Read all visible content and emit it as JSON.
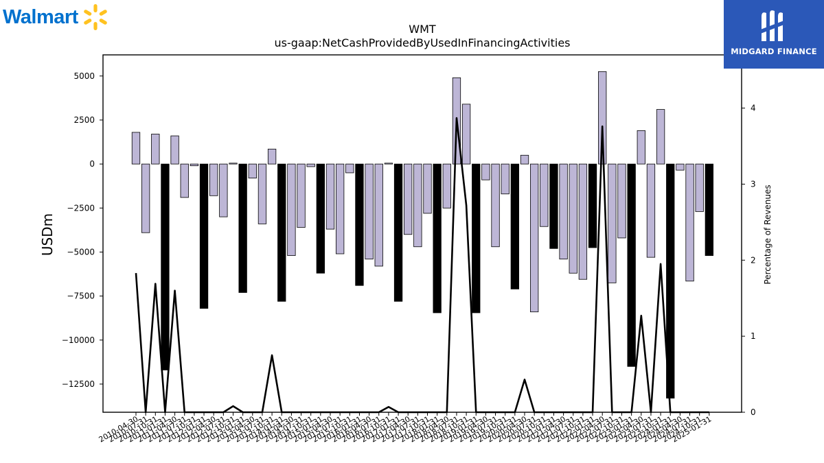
{
  "brand_left": {
    "name": "Walmart",
    "icon": "walmart-spark-icon",
    "color": "#0071CE",
    "spark_color": "#FFC220"
  },
  "brand_right": {
    "name": "MIDGARD FINANCE",
    "icon": "midgard-mark-icon",
    "background": "#2B58B8"
  },
  "chart_data": {
    "type": "bar",
    "title": "WMT",
    "subtitle": "us-gaap:NetCashProvidedByUsedInFinancingActivities",
    "ylabel": "USDm",
    "y2label": "Percentage of Revenues",
    "ylim": [
      -14100,
      6200
    ],
    "y2lim": [
      0,
      4.7
    ],
    "yticks": [
      5000,
      2500,
      0,
      -2500,
      -5000,
      -7500,
      -10000,
      -12500
    ],
    "y2ticks": [
      0,
      1,
      2,
      3,
      4
    ],
    "bar_colors": {
      "quarterly": "#BDB6D6",
      "annual": "#000000"
    },
    "line_color": "#000000",
    "categories": [
      "2010-04-30",
      "2010-07-31",
      "2010-10-31",
      "2011-01-31",
      "2011-04-30",
      "2011-07-31",
      "2011-10-31",
      "2012-01-31",
      "2012-04-30",
      "2012-07-31",
      "2012-10-31",
      "2013-01-31",
      "2013-04-30",
      "2013-07-31",
      "2013-10-31",
      "2014-01-31",
      "2014-04-30",
      "2014-07-31",
      "2014-10-31",
      "2015-01-31",
      "2015-04-30",
      "2015-07-31",
      "2015-10-31",
      "2016-01-31",
      "2016-04-30",
      "2016-07-31",
      "2016-10-31",
      "2017-01-31",
      "2017-04-30",
      "2017-07-31",
      "2017-10-31",
      "2018-01-31",
      "2018-04-30",
      "2018-07-31",
      "2018-10-31",
      "2019-01-31",
      "2019-04-30",
      "2019-07-31",
      "2019-10-31",
      "2020-01-31",
      "2020-04-30",
      "2020-07-31",
      "2020-10-31",
      "2021-01-31",
      "2021-04-30",
      "2021-07-31",
      "2021-10-31",
      "2022-01-31",
      "2022-04-30",
      "2022-07-31",
      "2022-10-31",
      "2023-01-31",
      "2023-04-30",
      "2023-07-31",
      "2023-10-31",
      "2024-01-31",
      "2024-04-30",
      "2024-07-31",
      "2024-10-31",
      "2025-01-31"
    ],
    "values": [
      1800,
      -3900,
      1700,
      -11700,
      1600,
      -1900,
      -100,
      -8200,
      -1800,
      -3000,
      50,
      -7300,
      -800,
      -3400,
      850,
      -7800,
      -5200,
      -3600,
      -150,
      -6200,
      -3700,
      -5100,
      -500,
      -6900,
      -5400,
      -5800,
      50,
      -7800,
      -4000,
      -4700,
      -2800,
      -8450,
      -2500,
      4900,
      3400,
      -8450,
      -900,
      -4700,
      -1700,
      -7100,
      500,
      -8400,
      -3550,
      -4800,
      -5400,
      -6200,
      -6550,
      -4750,
      5250,
      -6750,
      -4200,
      -11500,
      1900,
      -5300,
      3100,
      -13300,
      -350,
      -6650,
      -2700,
      -5200
    ],
    "annual": [
      false,
      false,
      false,
      true,
      false,
      false,
      false,
      true,
      false,
      false,
      false,
      true,
      false,
      false,
      false,
      true,
      false,
      false,
      false,
      true,
      false,
      false,
      false,
      true,
      false,
      false,
      false,
      true,
      false,
      false,
      false,
      true,
      false,
      false,
      false,
      true,
      false,
      false,
      false,
      true,
      false,
      false,
      false,
      true,
      false,
      false,
      false,
      true,
      false,
      false,
      false,
      true,
      false,
      false,
      false,
      true,
      false,
      false,
      false,
      true
    ],
    "pct_of_revenues": [
      1.83,
      0,
      1.69,
      0,
      1.6,
      0,
      0,
      0,
      0,
      0,
      0.08,
      0,
      0,
      0,
      0.75,
      0,
      0,
      0,
      0,
      0,
      0,
      0,
      0,
      0,
      0,
      0,
      0.07,
      0,
      0,
      0,
      0,
      0,
      0,
      3.87,
      2.72,
      0,
      0,
      0,
      0,
      0,
      0.43,
      0,
      0,
      0,
      0,
      0,
      0,
      0,
      3.76,
      0,
      0,
      0,
      1.27,
      0,
      1.95,
      0,
      0,
      0,
      0,
      0
    ]
  }
}
